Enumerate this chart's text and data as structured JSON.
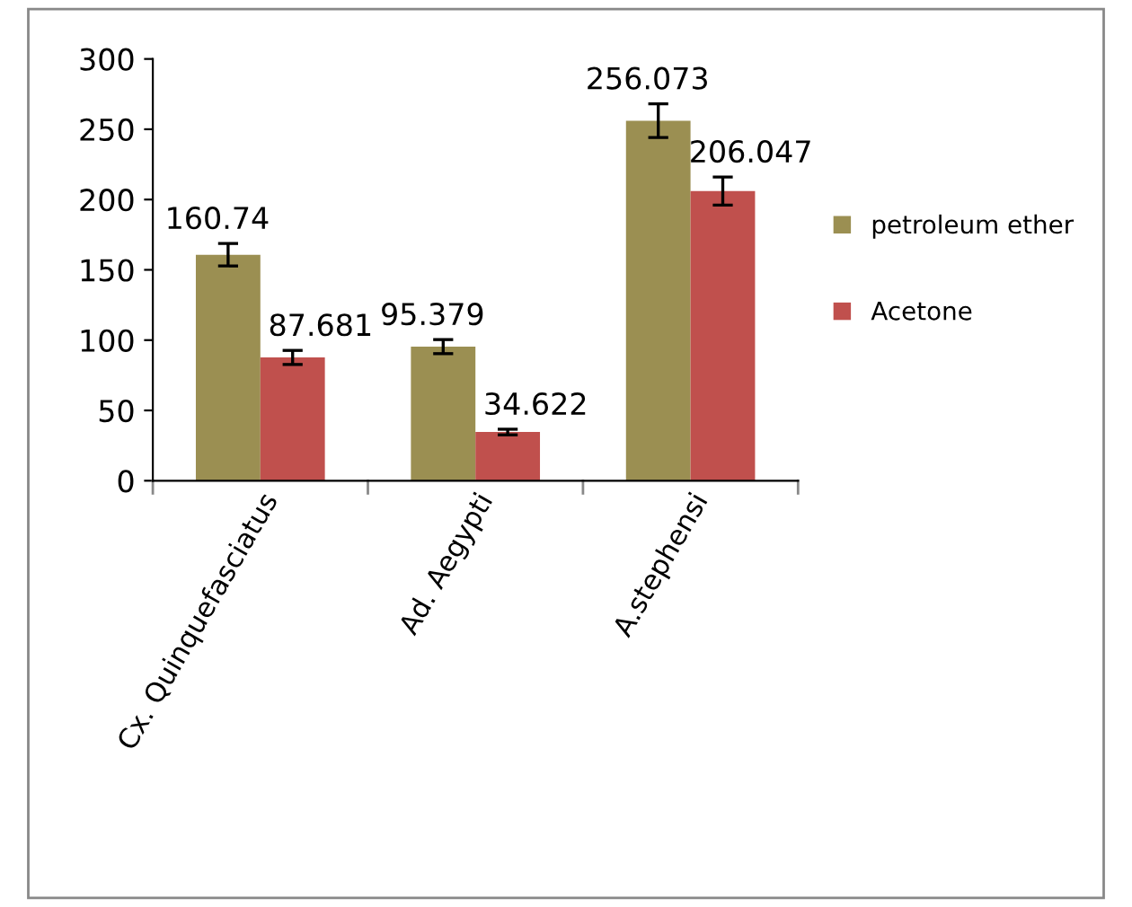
{
  "chart_data": {
    "type": "bar",
    "categories": [
      "Cx. Quinquefasciatus",
      "Ad. Aegypti",
      "A.stephensi"
    ],
    "series": [
      {
        "name": "petroleum ether",
        "color": "#9b8f52",
        "values": [
          160.74,
          95.379,
          256.073
        ],
        "errors": [
          8,
          5,
          12
        ]
      },
      {
        "name": "Acetone",
        "color": "#c0504d",
        "values": [
          87.681,
          34.622,
          206.047
        ],
        "errors": [
          5,
          2,
          10
        ]
      }
    ],
    "ylim": [
      0,
      300
    ],
    "yticks": [
      0,
      50,
      100,
      150,
      200,
      250,
      300
    ],
    "grid": false,
    "legend": "right",
    "data_labels": true
  }
}
